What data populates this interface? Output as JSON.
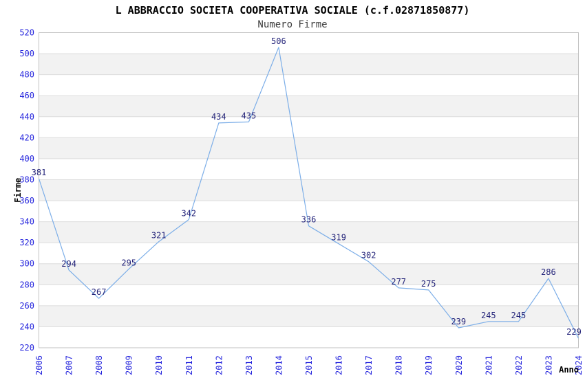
{
  "header": {
    "title": "L ABBRACCIO SOCIETA COOPERATIVA SOCIALE (c.f.02871850877)",
    "subtitle": "Numero Firme"
  },
  "chart_data": {
    "type": "line",
    "title": "Numero Firme",
    "xlabel": "Anno",
    "ylabel": "Firme",
    "categories": [
      "2006",
      "2007",
      "2008",
      "2009",
      "2010",
      "2011",
      "2012",
      "2013",
      "2014",
      "2015",
      "2016",
      "2017",
      "2018",
      "2019",
      "2020",
      "2021",
      "2022",
      "2023",
      "2024"
    ],
    "values": [
      381,
      294,
      267,
      295,
      321,
      342,
      434,
      435,
      506,
      336,
      319,
      302,
      277,
      275,
      239,
      245,
      245,
      286,
      229
    ],
    "ylim": [
      220,
      520
    ],
    "ytick_step": 20,
    "yticks": [
      220,
      240,
      260,
      280,
      300,
      320,
      340,
      360,
      380,
      400,
      420,
      440,
      460,
      480,
      500,
      520
    ],
    "grid": "horizontal-bands",
    "legend": "none",
    "colors": {
      "line": "#7caee8",
      "tick_label": "#2525dd",
      "data_label": "#232379",
      "band": "#f2f2f2",
      "gridline": "#dcdcdc",
      "border": "#c2c2c2",
      "axis_title": "#000000",
      "title": "#000000",
      "subtitle": "#3d3d3d"
    }
  }
}
